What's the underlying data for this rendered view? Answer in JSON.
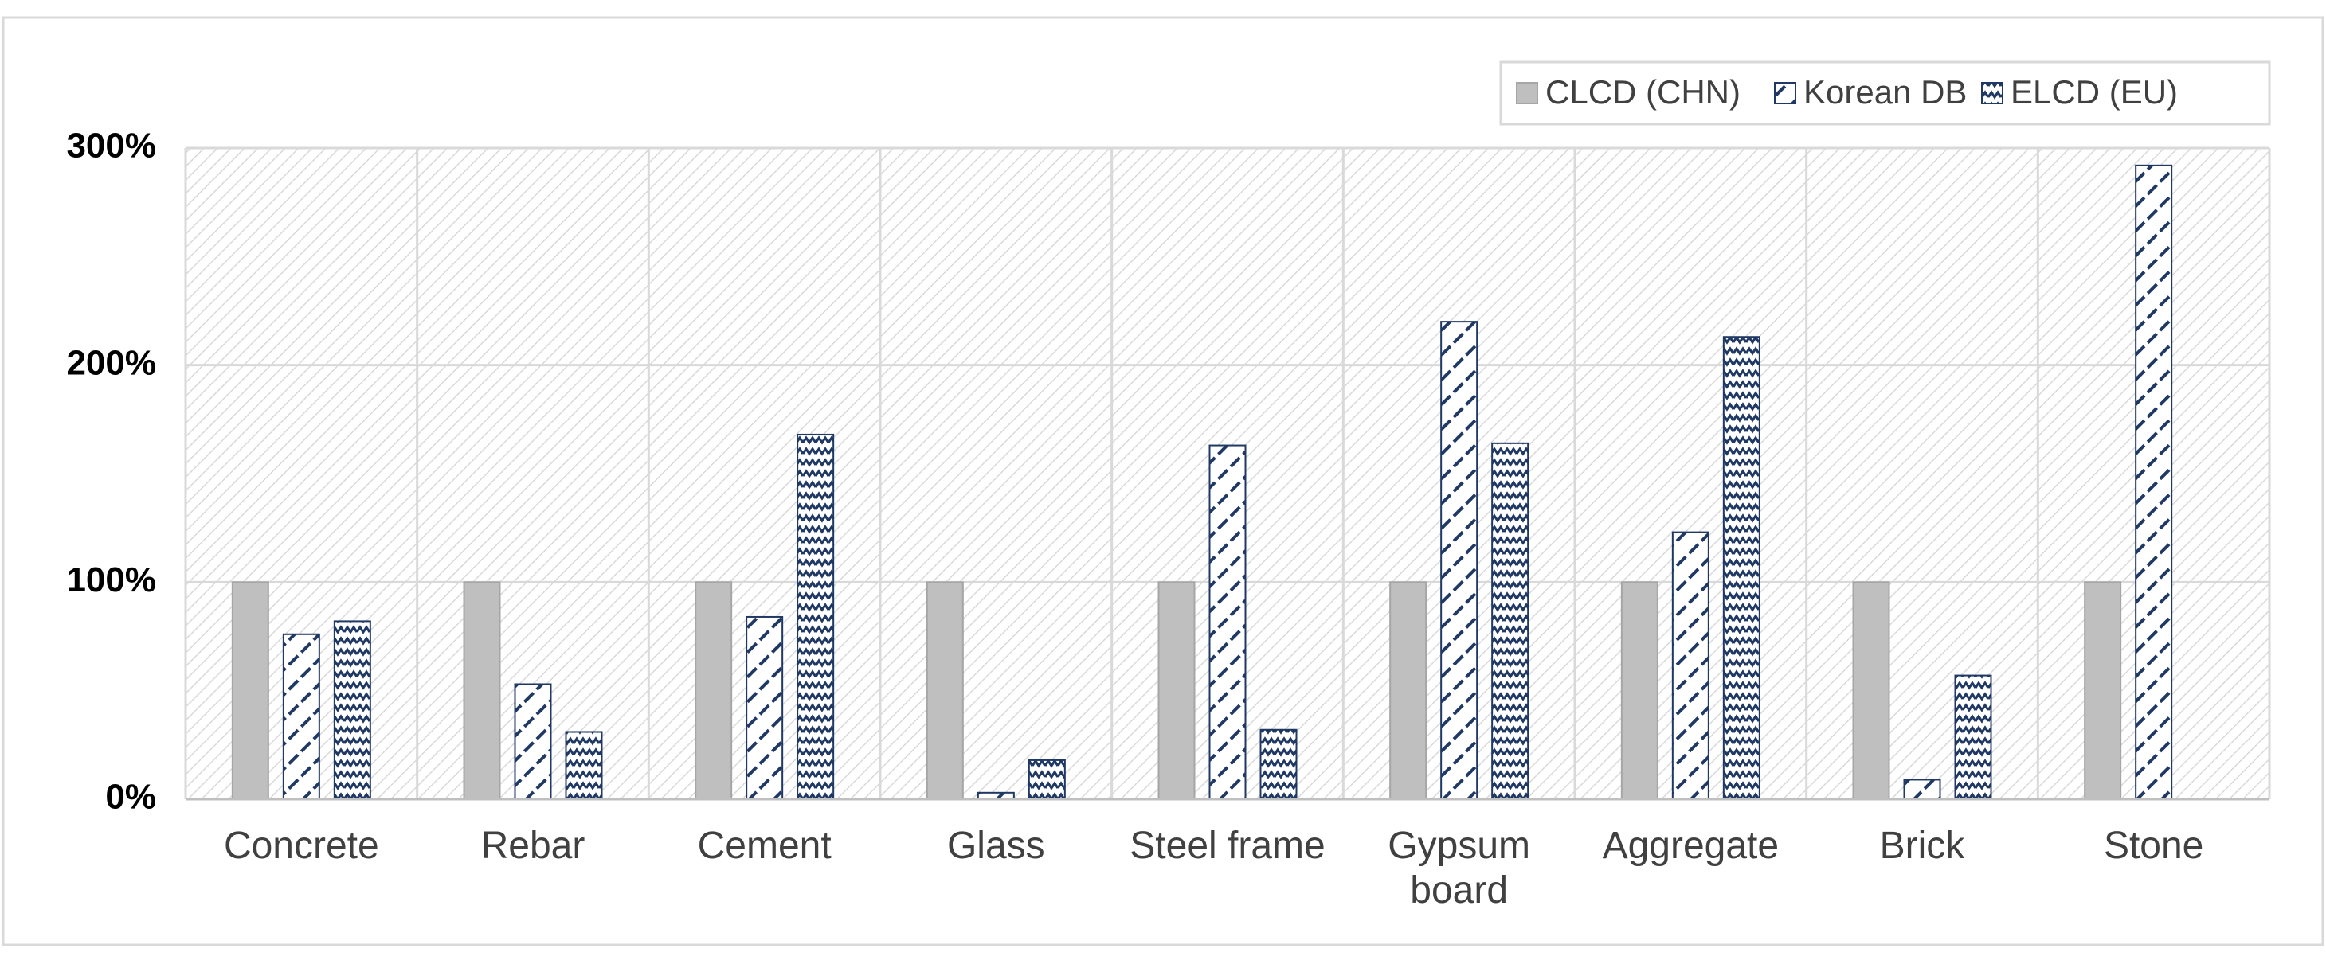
{
  "chart_data": {
    "type": "bar",
    "categories": [
      "Concrete",
      "Rebar",
      "Cement",
      "Glass",
      "Steel frame",
      "Gypsum board",
      "Aggregate",
      "Brick",
      "Stone"
    ],
    "series": [
      {
        "name": "CLCD (CHN)",
        "color": "#bfbfbf",
        "values": [
          100,
          100,
          100,
          100,
          100,
          100,
          100,
          100,
          100
        ]
      },
      {
        "name": "Korean DB",
        "color": "#1f3864",
        "values": [
          76,
          53,
          84,
          3,
          163,
          220,
          123,
          9,
          292
        ]
      },
      {
        "name": "ELCD (EU)",
        "color": "#1f3864",
        "values": [
          82,
          31,
          168,
          18,
          32,
          164,
          213,
          57,
          null
        ]
      }
    ],
    "ylim": [
      0,
      300
    ],
    "yticks": [
      {
        "value": 0,
        "label": "0%"
      },
      {
        "value": 100,
        "label": "100%"
      },
      {
        "value": 200,
        "label": "200%"
      },
      {
        "value": 300,
        "label": "300%"
      }
    ],
    "grid": true,
    "legend": "top-right"
  }
}
